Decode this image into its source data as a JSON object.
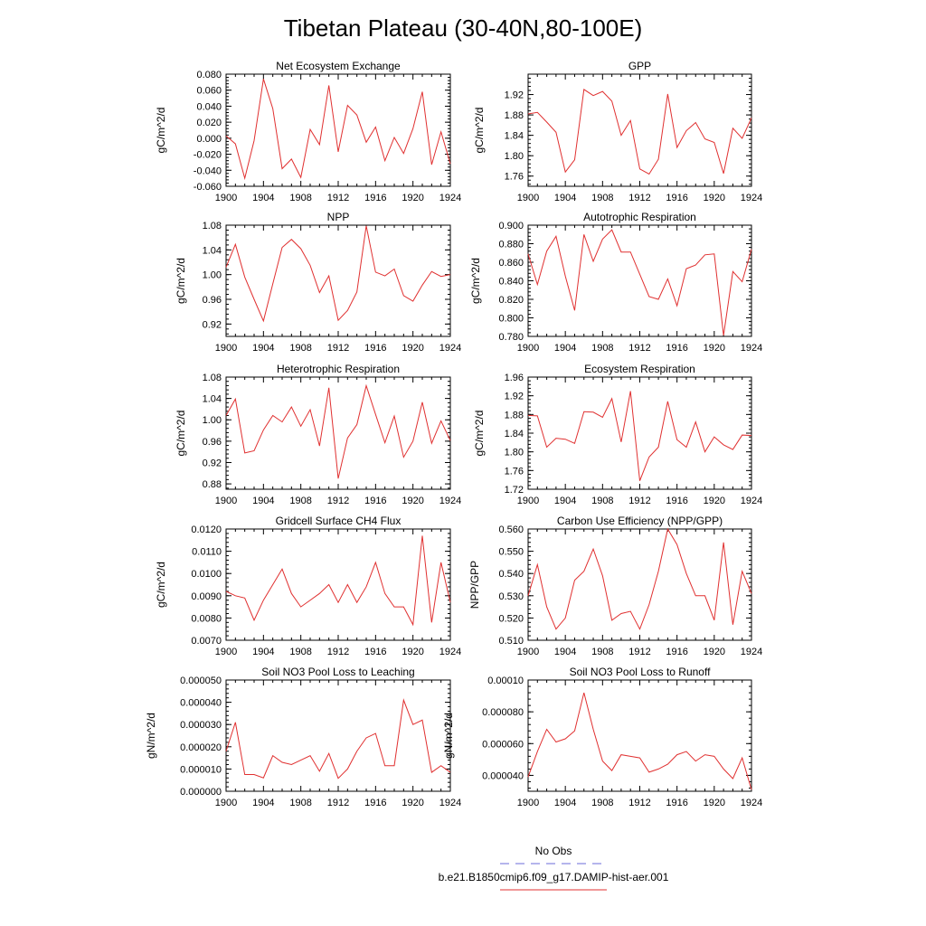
{
  "figure": {
    "title": "Tibetan Plateau (30-40N,80-100E)",
    "legend": [
      {
        "label": "No Obs",
        "color": "#6b6bd8",
        "dashed": true
      },
      {
        "label": "b.e21.B1850cmip6.f09_g17.DAMIP-hist-aer.001",
        "color": "#e03030",
        "dashed": false
      }
    ]
  },
  "chart_data": [
    {
      "type": "line",
      "title": "Net Ecosystem Exchange",
      "ylabel": "gC/m^2/d",
      "xlim": [
        1900,
        1924
      ],
      "ylim": [
        -0.06,
        0.08
      ],
      "yticks": [
        -0.06,
        -0.04,
        -0.02,
        0.0,
        0.02,
        0.04,
        0.06,
        0.08
      ],
      "yticklabels": [
        "-0.060",
        "-0.040",
        "-0.020",
        "0.000",
        "0.020",
        "0.040",
        "0.060",
        "0.080"
      ],
      "xticks": [
        1900,
        1904,
        1908,
        1912,
        1916,
        1920,
        1924
      ],
      "xticklabels": [
        "1900",
        "1904",
        "1908",
        "1912",
        "1916",
        "1920",
        "1924"
      ],
      "x": [
        1900,
        1901,
        1902,
        1903,
        1904,
        1905,
        1906,
        1907,
        1908,
        1909,
        1910,
        1911,
        1912,
        1913,
        1914,
        1915,
        1916,
        1917,
        1918,
        1919,
        1920,
        1921,
        1922,
        1923,
        1924
      ],
      "series": [
        {
          "color": "#e03030",
          "values": [
            0.003,
            -0.007,
            -0.05,
            -0.003,
            0.074,
            0.037,
            -0.038,
            -0.026,
            -0.049,
            0.011,
            -0.008,
            0.066,
            -0.017,
            0.041,
            0.029,
            -0.005,
            0.014,
            -0.028,
            0.001,
            -0.019,
            0.012,
            0.058,
            -0.033,
            0.008,
            -0.032
          ]
        }
      ]
    },
    {
      "type": "line",
      "title": "GPP",
      "ylabel": "gC/m^2/d",
      "xlim": [
        1900,
        1924
      ],
      "ylim": [
        1.74,
        1.96
      ],
      "yticks": [
        1.76,
        1.8,
        1.84,
        1.88,
        1.92
      ],
      "yticklabels": [
        "1.76",
        "1.80",
        "1.84",
        "1.88",
        "1.92"
      ],
      "xticks": [
        1900,
        1904,
        1908,
        1912,
        1916,
        1920,
        1924
      ],
      "xticklabels": [
        "1900",
        "1904",
        "1908",
        "1912",
        "1916",
        "1920",
        "1924"
      ],
      "x": [
        1900,
        1901,
        1902,
        1903,
        1904,
        1905,
        1906,
        1907,
        1908,
        1909,
        1910,
        1911,
        1912,
        1913,
        1914,
        1915,
        1916,
        1917,
        1918,
        1919,
        1920,
        1921,
        1922,
        1923,
        1924
      ],
      "series": [
        {
          "color": "#e03030",
          "values": [
            1.882,
            1.885,
            1.866,
            1.846,
            1.768,
            1.792,
            1.93,
            1.918,
            1.926,
            1.907,
            1.84,
            1.869,
            1.774,
            1.764,
            1.793,
            1.921,
            1.816,
            1.849,
            1.865,
            1.833,
            1.826,
            1.765,
            1.854,
            1.834,
            1.874
          ]
        }
      ]
    },
    {
      "type": "line",
      "title": "NPP",
      "ylabel": "gC/m^2/d",
      "xlim": [
        1900,
        1924
      ],
      "ylim": [
        0.9,
        1.08
      ],
      "yticks": [
        0.92,
        0.96,
        1.0,
        1.04,
        1.08
      ],
      "yticklabels": [
        "0.92",
        "0.96",
        "1.00",
        "1.04",
        "1.08"
      ],
      "xticks": [
        1900,
        1904,
        1908,
        1912,
        1916,
        1920,
        1924
      ],
      "xticklabels": [
        "1900",
        "1904",
        "1908",
        "1912",
        "1916",
        "1920",
        "1924"
      ],
      "x": [
        1900,
        1901,
        1902,
        1903,
        1904,
        1905,
        1906,
        1907,
        1908,
        1909,
        1910,
        1911,
        1912,
        1913,
        1914,
        1915,
        1916,
        1917,
        1918,
        1919,
        1920,
        1921,
        1922,
        1923,
        1924
      ],
      "series": [
        {
          "color": "#e03030",
          "values": [
            1.012,
            1.049,
            0.996,
            0.96,
            0.925,
            0.985,
            1.044,
            1.057,
            1.042,
            1.015,
            0.971,
            0.998,
            0.926,
            0.942,
            0.972,
            1.079,
            1.004,
            0.998,
            1.009,
            0.966,
            0.957,
            0.983,
            1.005,
            0.997,
            1.0
          ]
        }
      ]
    },
    {
      "type": "line",
      "title": "Autotrophic Respiration",
      "ylabel": "gC/m^2/d",
      "xlim": [
        1900,
        1924
      ],
      "ylim": [
        0.78,
        0.9
      ],
      "yticks": [
        0.78,
        0.8,
        0.82,
        0.84,
        0.86,
        0.88,
        0.9
      ],
      "yticklabels": [
        "0.780",
        "0.800",
        "0.820",
        "0.840",
        "0.860",
        "0.880",
        "0.900"
      ],
      "xticks": [
        1900,
        1904,
        1908,
        1912,
        1916,
        1920,
        1924
      ],
      "xticklabels": [
        "1900",
        "1904",
        "1908",
        "1912",
        "1916",
        "1920",
        "1924"
      ],
      "x": [
        1900,
        1901,
        1902,
        1903,
        1904,
        1905,
        1906,
        1907,
        1908,
        1909,
        1910,
        1911,
        1912,
        1913,
        1914,
        1915,
        1916,
        1917,
        1918,
        1919,
        1920,
        1921,
        1922,
        1923,
        1924
      ],
      "series": [
        {
          "color": "#e03030",
          "values": [
            0.869,
            0.836,
            0.872,
            0.888,
            0.845,
            0.808,
            0.89,
            0.861,
            0.885,
            0.895,
            0.871,
            0.871,
            0.847,
            0.823,
            0.82,
            0.842,
            0.813,
            0.853,
            0.857,
            0.868,
            0.869,
            0.781,
            0.85,
            0.839,
            0.874
          ]
        }
      ]
    },
    {
      "type": "line",
      "title": "Heterotrophic Respiration",
      "ylabel": "gC/m^2/d",
      "xlim": [
        1900,
        1924
      ],
      "ylim": [
        0.87,
        1.08
      ],
      "yticks": [
        0.88,
        0.92,
        0.96,
        1.0,
        1.04,
        1.08
      ],
      "yticklabels": [
        "0.88",
        "0.92",
        "0.96",
        "1.00",
        "1.04",
        "1.08"
      ],
      "xticks": [
        1900,
        1904,
        1908,
        1912,
        1916,
        1920,
        1924
      ],
      "xticklabels": [
        "1900",
        "1904",
        "1908",
        "1912",
        "1916",
        "1920",
        "1924"
      ],
      "x": [
        1900,
        1901,
        1902,
        1903,
        1904,
        1905,
        1906,
        1907,
        1908,
        1909,
        1910,
        1911,
        1912,
        1913,
        1914,
        1915,
        1916,
        1917,
        1918,
        1919,
        1920,
        1921,
        1922,
        1923,
        1924
      ],
      "series": [
        {
          "color": "#e03030",
          "values": [
            1.008,
            1.039,
            0.938,
            0.942,
            0.981,
            1.008,
            0.996,
            1.024,
            0.988,
            1.019,
            0.951,
            1.06,
            0.89,
            0.966,
            0.991,
            1.064,
            1.01,
            0.957,
            1.007,
            0.93,
            0.96,
            1.033,
            0.956,
            0.998,
            0.961
          ]
        }
      ]
    },
    {
      "type": "line",
      "title": "Ecosystem Respiration",
      "ylabel": "gC/m^2/d",
      "xlim": [
        1900,
        1924
      ],
      "ylim": [
        1.72,
        1.96
      ],
      "yticks": [
        1.72,
        1.76,
        1.8,
        1.84,
        1.88,
        1.92,
        1.96
      ],
      "yticklabels": [
        "1.72",
        "1.76",
        "1.80",
        "1.84",
        "1.88",
        "1.92",
        "1.96"
      ],
      "xticks": [
        1900,
        1904,
        1908,
        1912,
        1916,
        1920,
        1924
      ],
      "xticklabels": [
        "1900",
        "1904",
        "1908",
        "1912",
        "1916",
        "1920",
        "1924"
      ],
      "x": [
        1900,
        1901,
        1902,
        1903,
        1904,
        1905,
        1906,
        1907,
        1908,
        1909,
        1910,
        1911,
        1912,
        1913,
        1914,
        1915,
        1916,
        1917,
        1918,
        1919,
        1920,
        1921,
        1922,
        1923,
        1924
      ],
      "series": [
        {
          "color": "#e03030",
          "values": [
            1.878,
            1.877,
            1.81,
            1.829,
            1.827,
            1.818,
            1.886,
            1.885,
            1.874,
            1.914,
            1.821,
            1.93,
            1.738,
            1.789,
            1.81,
            1.908,
            1.826,
            1.81,
            1.864,
            1.8,
            1.832,
            1.815,
            1.805,
            1.836,
            1.835
          ]
        }
      ]
    },
    {
      "type": "line",
      "title": "Gridcell Surface CH4 Flux",
      "ylabel": "gC/m^2/d",
      "xlim": [
        1900,
        1924
      ],
      "ylim": [
        0.007,
        0.012
      ],
      "yticks": [
        0.007,
        0.008,
        0.009,
        0.01,
        0.011,
        0.012
      ],
      "yticklabels": [
        "0.0070",
        "0.0080",
        "0.0090",
        "0.0100",
        "0.0110",
        "0.0120"
      ],
      "xticks": [
        1900,
        1904,
        1908,
        1912,
        1916,
        1920,
        1924
      ],
      "xticklabels": [
        "1900",
        "1904",
        "1908",
        "1912",
        "1916",
        "1920",
        "1924"
      ],
      "x": [
        1900,
        1901,
        1902,
        1903,
        1904,
        1905,
        1906,
        1907,
        1908,
        1909,
        1910,
        1911,
        1912,
        1913,
        1914,
        1915,
        1916,
        1917,
        1918,
        1919,
        1920,
        1921,
        1922,
        1923,
        1924
      ],
      "series": [
        {
          "color": "#e03030",
          "values": [
            0.0092,
            0.009,
            0.0089,
            0.0079,
            0.0088,
            0.0095,
            0.0102,
            0.0091,
            0.0085,
            0.0088,
            0.0091,
            0.0095,
            0.0087,
            0.0095,
            0.0087,
            0.0094,
            0.0105,
            0.0091,
            0.0085,
            0.0085,
            0.0077,
            0.0117,
            0.0078,
            0.0105,
            0.0087
          ]
        }
      ]
    },
    {
      "type": "line",
      "title": "Carbon Use Efficiency (NPP/GPP)",
      "ylabel": "NPP/GPP",
      "xlim": [
        1900,
        1924
      ],
      "ylim": [
        0.51,
        0.56
      ],
      "yticks": [
        0.51,
        0.52,
        0.53,
        0.54,
        0.55,
        0.56
      ],
      "yticklabels": [
        "0.510",
        "0.520",
        "0.530",
        "0.540",
        "0.550",
        "0.560"
      ],
      "xticks": [
        1900,
        1904,
        1908,
        1912,
        1916,
        1920,
        1924
      ],
      "xticklabels": [
        "1900",
        "1904",
        "1908",
        "1912",
        "1916",
        "1920",
        "1924"
      ],
      "x": [
        1900,
        1901,
        1902,
        1903,
        1904,
        1905,
        1906,
        1907,
        1908,
        1909,
        1910,
        1911,
        1912,
        1913,
        1914,
        1915,
        1916,
        1917,
        1918,
        1919,
        1920,
        1921,
        1922,
        1923,
        1924
      ],
      "series": [
        {
          "color": "#e03030",
          "values": [
            0.53,
            0.544,
            0.525,
            0.515,
            0.52,
            0.537,
            0.541,
            0.551,
            0.539,
            0.519,
            0.522,
            0.523,
            0.515,
            0.526,
            0.541,
            0.56,
            0.553,
            0.54,
            0.53,
            0.53,
            0.519,
            0.554,
            0.517,
            0.541,
            0.531
          ]
        }
      ]
    },
    {
      "type": "line",
      "title": "Soil NO3 Pool Loss to Leaching",
      "ylabel": "gN/m^2/d",
      "xlim": [
        1900,
        1924
      ],
      "ylim": [
        0.0,
        5e-05
      ],
      "yticks": [
        0.0,
        1e-05,
        2e-05,
        3e-05,
        4e-05,
        5e-05
      ],
      "yticklabels": [
        "0.000000",
        "0.000010",
        "0.000020",
        "0.000030",
        "0.000040",
        "0.000050"
      ],
      "xticks": [
        1900,
        1904,
        1908,
        1912,
        1916,
        1920,
        1924
      ],
      "xticklabels": [
        "1900",
        "1904",
        "1908",
        "1912",
        "1916",
        "1920",
        "1924"
      ],
      "x": [
        1900,
        1901,
        1902,
        1903,
        1904,
        1905,
        1906,
        1907,
        1908,
        1909,
        1910,
        1911,
        1912,
        1913,
        1914,
        1915,
        1916,
        1917,
        1918,
        1919,
        1920,
        1921,
        1922,
        1923,
        1924
      ],
      "series": [
        {
          "color": "#e03030",
          "values": [
            1.8e-05,
            3.1e-05,
            7.5e-06,
            7.5e-06,
            6e-06,
            1.6e-05,
            1.3e-05,
            1.2e-05,
            1.4e-05,
            1.6e-05,
            9e-06,
            1.7e-05,
            5.8e-06,
            1e-05,
            1.8e-05,
            2.4e-05,
            2.6e-05,
            1.15e-05,
            1.15e-05,
            4.1e-05,
            3e-05,
            3.2e-05,
            8.5e-06,
            1.15e-05,
            8.5e-06
          ]
        }
      ]
    },
    {
      "type": "line",
      "title": "Soil NO3 Pool Loss to Runoff",
      "ylabel": "gN/m^2/d",
      "xlim": [
        1900,
        1924
      ],
      "ylim": [
        3e-05,
        0.0001
      ],
      "yticks": [
        4e-05,
        6e-05,
        8e-05,
        0.0001
      ],
      "yticklabels": [
        "0.000040",
        "0.000060",
        "0.000080",
        "0.00010"
      ],
      "xticks": [
        1900,
        1904,
        1908,
        1912,
        1916,
        1920,
        1924
      ],
      "xticklabels": [
        "1900",
        "1904",
        "1908",
        "1912",
        "1916",
        "1920",
        "1924"
      ],
      "x": [
        1900,
        1901,
        1902,
        1903,
        1904,
        1905,
        1906,
        1907,
        1908,
        1909,
        1910,
        1911,
        1912,
        1913,
        1914,
        1915,
        1916,
        1917,
        1918,
        1919,
        1920,
        1921,
        1922,
        1923,
        1924
      ],
      "series": [
        {
          "color": "#e03030",
          "values": [
            3.9e-05,
            5.5e-05,
            6.9e-05,
            6.1e-05,
            6.3e-05,
            6.8e-05,
            9.2e-05,
            6.9e-05,
            4.9e-05,
            4.3e-05,
            5.3e-05,
            5.2e-05,
            5.1e-05,
            4.2e-05,
            4.4e-05,
            4.7e-05,
            5.3e-05,
            5.5e-05,
            4.9e-05,
            5.3e-05,
            5.2e-05,
            4.4e-05,
            3.8e-05,
            5.1e-05,
            3.1e-05
          ]
        }
      ]
    }
  ]
}
